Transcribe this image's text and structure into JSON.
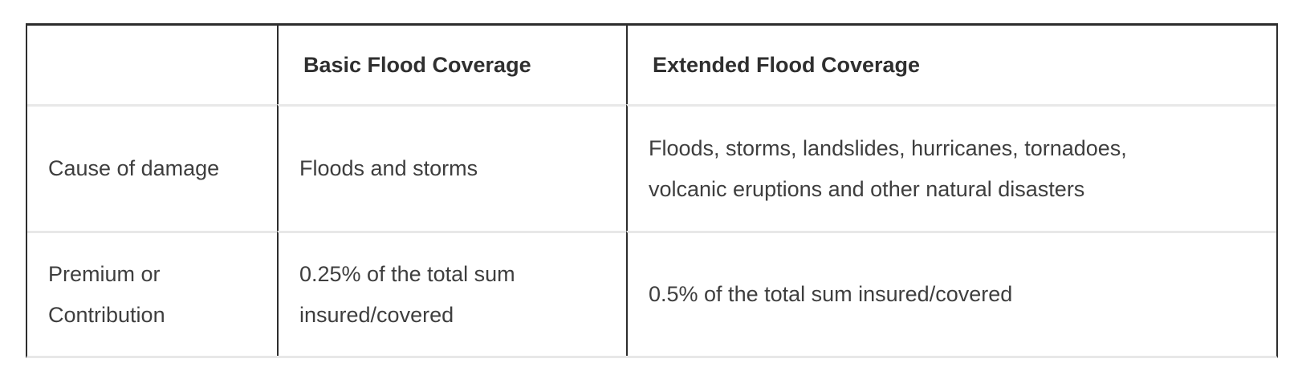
{
  "colors": {
    "border_dark": "#2d2d2d",
    "border_light": "#e8e8e8",
    "header_text": "#2f2f2f",
    "body_text": "#3e3e3e",
    "page_bg": "#ffffff"
  },
  "table": {
    "header": {
      "col0": "",
      "col1": "Basic Flood Coverage",
      "col2": "Extended Flood Coverage"
    },
    "rows": [
      {
        "label": "Cause of damage",
        "basic": "Floods and storms",
        "extended": [
          "Floods, storms, landslides, hurricanes, tornadoes,",
          "volcanic eruptions and other natural disasters"
        ]
      },
      {
        "label": [
          "Premium or",
          "Contribution"
        ],
        "basic": [
          "0.25% of the total sum",
          "insured/covered"
        ],
        "extended": "0.5% of the total sum insured/covered"
      }
    ]
  }
}
